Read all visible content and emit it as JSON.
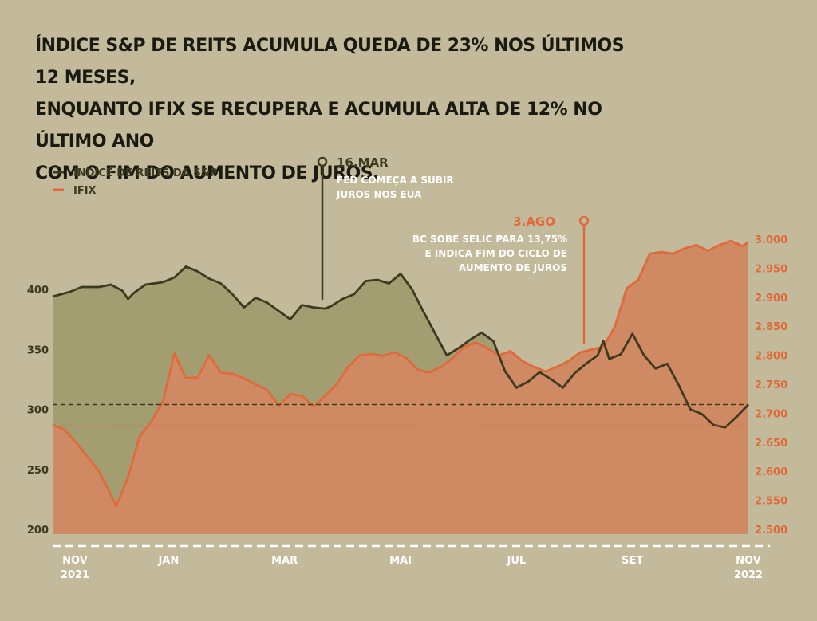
{
  "title_lines": [
    "ÍNDICE S&P DE REITS ACUMULA QUEDA DE 23% NOS ÚLTIMOS 12 MESES,",
    "ENQUANTO IFIX SE RECUPERA E ACUMULA ALTA DE 12% NO ÚLTIMO ANO",
    "COM O FIM DO AUMENTO DE JUROS."
  ],
  "colors": {
    "background": "#c3b99b",
    "sp": "#3d3a1f",
    "sp_fill": "#a39d72",
    "ifix": "#e06a3a",
    "ifix_fill": "#cf8a63",
    "text": "#3d3a1f"
  },
  "chart_data": {
    "type": "line",
    "legend": {
      "position": "top-left",
      "entries": [
        "ÍNDICE DE REITS DA S&P",
        "IFIX"
      ]
    },
    "x_ticks": [
      {
        "label": "NOV",
        "sub": "2021",
        "x": 0
      },
      {
        "label": "JAN",
        "sub": "",
        "x": 2
      },
      {
        "label": "MAR",
        "sub": "",
        "x": 4
      },
      {
        "label": "MAI",
        "sub": "",
        "x": 6
      },
      {
        "label": "JUL",
        "sub": "",
        "x": 8
      },
      {
        "label": "SET",
        "sub": "",
        "x": 10
      },
      {
        "label": "NOV",
        "sub": "2022",
        "x": 12
      }
    ],
    "y_left": {
      "ticks": [
        "400",
        "350",
        "300",
        "250",
        "200"
      ],
      "tick_values": [
        400,
        350,
        300,
        250,
        200
      ],
      "min": 195,
      "max": 440
    },
    "y_right": {
      "ticks": [
        "3.000",
        "2.950",
        "2.900",
        "2.850",
        "2.800",
        "2.750",
        "2.700",
        "2.650",
        "2.600",
        "2.550",
        "2.500"
      ],
      "tick_values": [
        3000,
        2950,
        2900,
        2850,
        2800,
        2750,
        2700,
        2650,
        2600,
        2550,
        2500
      ],
      "min": 2500,
      "max": 3000
    },
    "reference_lines": {
      "sp": 304,
      "ifix": 2678
    },
    "series": [
      {
        "name": "ÍNDICE DE REITS DA S&P",
        "axis": "left",
        "points": [
          [
            0,
            394
          ],
          [
            0.3,
            398
          ],
          [
            0.5,
            402
          ],
          [
            0.8,
            402
          ],
          [
            1.0,
            404
          ],
          [
            1.2,
            399
          ],
          [
            1.3,
            392
          ],
          [
            1.4,
            397
          ],
          [
            1.6,
            404
          ],
          [
            1.9,
            406
          ],
          [
            2.1,
            410
          ],
          [
            2.3,
            419
          ],
          [
            2.5,
            415
          ],
          [
            2.7,
            409
          ],
          [
            2.9,
            405
          ],
          [
            3.1,
            396
          ],
          [
            3.3,
            385
          ],
          [
            3.5,
            393
          ],
          [
            3.7,
            389
          ],
          [
            3.9,
            382
          ],
          [
            4.1,
            375
          ],
          [
            4.3,
            387
          ],
          [
            4.5,
            385
          ],
          [
            4.7,
            384
          ],
          [
            4.8,
            386
          ],
          [
            5.0,
            392
          ],
          [
            5.2,
            396
          ],
          [
            5.4,
            407
          ],
          [
            5.6,
            408
          ],
          [
            5.8,
            405
          ],
          [
            6.0,
            413
          ],
          [
            6.2,
            400
          ],
          [
            6.4,
            381
          ],
          [
            6.6,
            363
          ],
          [
            6.8,
            345
          ],
          [
            7.0,
            351
          ],
          [
            7.2,
            358
          ],
          [
            7.4,
            364
          ],
          [
            7.6,
            357
          ],
          [
            7.8,
            332
          ],
          [
            8.0,
            318
          ],
          [
            8.2,
            323
          ],
          [
            8.4,
            331
          ],
          [
            8.6,
            325
          ],
          [
            8.8,
            318
          ],
          [
            9.0,
            330
          ],
          [
            9.2,
            338
          ],
          [
            9.4,
            345
          ],
          [
            9.5,
            357
          ],
          [
            9.6,
            342
          ],
          [
            9.8,
            346
          ],
          [
            10.0,
            363
          ],
          [
            10.2,
            345
          ],
          [
            10.4,
            334
          ],
          [
            10.6,
            338
          ],
          [
            10.8,
            320
          ],
          [
            11.0,
            300
          ],
          [
            11.2,
            296
          ],
          [
            11.4,
            287
          ],
          [
            11.6,
            285
          ],
          [
            11.8,
            294
          ],
          [
            12.0,
            304
          ]
        ]
      },
      {
        "name": "IFIX",
        "axis": "right",
        "points": [
          [
            0,
            2680
          ],
          [
            0.2,
            2672
          ],
          [
            0.4,
            2650
          ],
          [
            0.6,
            2625
          ],
          [
            0.8,
            2600
          ],
          [
            1.0,
            2560
          ],
          [
            1.1,
            2540
          ],
          [
            1.3,
            2590
          ],
          [
            1.5,
            2660
          ],
          [
            1.7,
            2685
          ],
          [
            1.9,
            2720
          ],
          [
            2.1,
            2803
          ],
          [
            2.3,
            2760
          ],
          [
            2.5,
            2762
          ],
          [
            2.7,
            2800
          ],
          [
            2.9,
            2770
          ],
          [
            3.1,
            2768
          ],
          [
            3.3,
            2760
          ],
          [
            3.5,
            2750
          ],
          [
            3.7,
            2740
          ],
          [
            3.9,
            2713
          ],
          [
            4.1,
            2733
          ],
          [
            4.3,
            2730
          ],
          [
            4.5,
            2712
          ],
          [
            4.7,
            2730
          ],
          [
            4.9,
            2750
          ],
          [
            5.1,
            2780
          ],
          [
            5.3,
            2800
          ],
          [
            5.5,
            2802
          ],
          [
            5.7,
            2799
          ],
          [
            5.9,
            2805
          ],
          [
            6.1,
            2795
          ],
          [
            6.3,
            2775
          ],
          [
            6.5,
            2770
          ],
          [
            6.7,
            2780
          ],
          [
            6.9,
            2795
          ],
          [
            7.1,
            2815
          ],
          [
            7.3,
            2822
          ],
          [
            7.5,
            2812
          ],
          [
            7.7,
            2800
          ],
          [
            7.9,
            2807
          ],
          [
            8.1,
            2790
          ],
          [
            8.3,
            2780
          ],
          [
            8.5,
            2772
          ],
          [
            8.7,
            2780
          ],
          [
            8.9,
            2790
          ],
          [
            9.1,
            2805
          ],
          [
            9.3,
            2810
          ],
          [
            9.5,
            2815
          ],
          [
            9.7,
            2850
          ],
          [
            9.9,
            2915
          ],
          [
            10.1,
            2930
          ],
          [
            10.3,
            2975
          ],
          [
            10.5,
            2978
          ],
          [
            10.7,
            2975
          ],
          [
            10.9,
            2984
          ],
          [
            11.1,
            2990
          ],
          [
            11.3,
            2980
          ],
          [
            11.5,
            2990
          ],
          [
            11.7,
            2997
          ],
          [
            11.9,
            2988
          ],
          [
            12.0,
            2995
          ]
        ]
      }
    ],
    "annotations": [
      {
        "date": "16.MAR",
        "text_lines": [
          "FED COMEÇA A SUBIR",
          "JUROS NOS EUA"
        ],
        "x": 4.5
      },
      {
        "date": "3.AGO",
        "text_lines": [
          "BC SOBE SELIC PARA 13,75%",
          "E INDICA FIM DO CICLO DE",
          "AUMENTO DE JUROS"
        ],
        "x": 9.1
      }
    ]
  }
}
